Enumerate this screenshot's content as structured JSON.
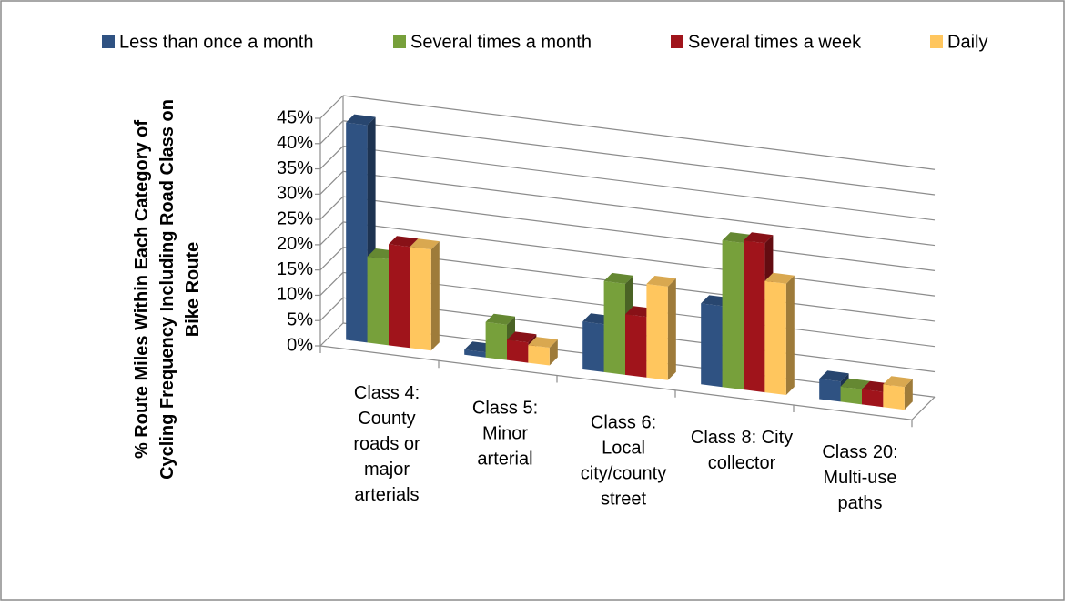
{
  "chart_data": {
    "type": "bar3d",
    "ylabel": "% Route Miles Within Each Category of\nCycling Frequency Including Road Class on\nBike Route",
    "categories": [
      "Class 4:\nCounty\nroads or\nmajor\narterials",
      "Class 5:\nMinor\narterial",
      "Class 6:\nLocal\ncity/county\nstreet",
      "Class 8:  City\ncollector",
      "Class 20:\nMulti-use\npaths"
    ],
    "series": [
      {
        "name": "Less than once a month",
        "color": "#2f5282",
        "values": [
          43,
          1,
          9.5,
          16,
          4
        ]
      },
      {
        "name": "Several times a month",
        "color": "#77a03b",
        "values": [
          17,
          7,
          18,
          29,
          3
        ]
      },
      {
        "name": "Several times a week",
        "color": "#a0141b",
        "values": [
          20,
          4,
          12,
          29.5,
          3
        ]
      },
      {
        "name": "Daily",
        "color": "#ffc65e",
        "values": [
          20,
          3.5,
          18.5,
          22,
          4.5
        ]
      }
    ],
    "ylim": [
      0,
      45
    ],
    "yticks": [
      {
        "value": 0,
        "label": "0%"
      },
      {
        "value": 5,
        "label": "5%"
      },
      {
        "value": 10,
        "label": "10%"
      },
      {
        "value": 15,
        "label": "15%"
      },
      {
        "value": 20,
        "label": "20%"
      },
      {
        "value": 25,
        "label": "25%"
      },
      {
        "value": 30,
        "label": "30%"
      },
      {
        "value": 35,
        "label": "35%"
      },
      {
        "value": 40,
        "label": "40%"
      },
      {
        "value": 45,
        "label": "45%"
      }
    ],
    "grid": true,
    "legend": "top"
  }
}
